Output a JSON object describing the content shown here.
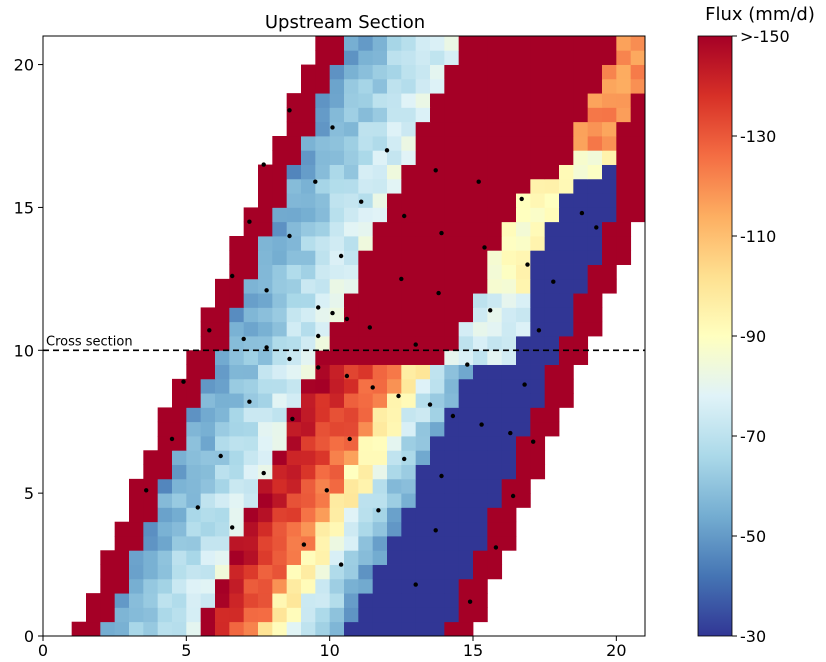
{
  "chart_data": {
    "type": "heatmap",
    "title": "Upstream Section",
    "xlabel": "",
    "ylabel": "",
    "xlim": [
      0,
      21
    ],
    "ylim": [
      0,
      21
    ],
    "x_ticks": [
      0,
      5,
      10,
      15,
      20
    ],
    "y_ticks": [
      0,
      5,
      10,
      15,
      20
    ],
    "colorbar": {
      "label": "Flux (mm/d)",
      "range": [
        -30,
        -150
      ],
      "ticks": [
        "-30",
        "-50",
        "-70",
        "-90",
        "-110",
        "-130",
        ">-150"
      ],
      "colormap": "RdYlBu",
      "colors": [
        "#313695",
        "#4575b4",
        "#74add1",
        "#abd9e9",
        "#e0f3f8",
        "#ffffbf",
        "#fee090",
        "#fdae61",
        "#f46d43",
        "#d73027",
        "#a50026"
      ]
    },
    "annotation": {
      "text": "Cross section",
      "y": 10
    },
    "band_description": "Diagonal band of cells: from the left edge the band shows a red boundary column, then a blue gradient (-50 to -80), a red core (>-150), orange/yellow cells (-100 to -130), a light-blue transition and a dark-blue region (-30) ending in a red boundary column on the right. Left boundary runs from about x=1 at y=0 to x=9.5 at y=21; right boundary from about x=15 at y=0 to x=21 at y=15.",
    "points": [
      [
        14.9,
        1.2
      ],
      [
        13,
        1.8
      ],
      [
        10.4,
        2.5
      ],
      [
        15.8,
        3.1
      ],
      [
        9.1,
        3.2
      ],
      [
        13.7,
        3.7
      ],
      [
        6.6,
        3.8
      ],
      [
        11.7,
        4.4
      ],
      [
        5.4,
        4.5
      ],
      [
        16.4,
        4.9
      ],
      [
        3.6,
        5.1
      ],
      [
        9.9,
        5.1
      ],
      [
        13.9,
        5.6
      ],
      [
        7.7,
        5.7
      ],
      [
        12.6,
        6.2
      ],
      [
        6.2,
        6.3
      ],
      [
        10.7,
        6.9
      ],
      [
        4.5,
        6.9
      ],
      [
        17.1,
        6.8
      ],
      [
        16.3,
        7.1
      ],
      [
        8.7,
        7.6
      ],
      [
        14.3,
        7.7
      ],
      [
        15.3,
        7.4
      ],
      [
        13.5,
        8.1
      ],
      [
        7.2,
        8.2
      ],
      [
        12.4,
        8.4
      ],
      [
        11.5,
        8.7
      ],
      [
        16.8,
        8.8
      ],
      [
        4.9,
        8.9
      ],
      [
        10.6,
        9.1
      ],
      [
        14.8,
        9.5
      ],
      [
        9.6,
        9.4
      ],
      [
        7.8,
        10.1
      ],
      [
        8.6,
        9.7
      ],
      [
        13,
        10.2
      ],
      [
        7,
        10.4
      ],
      [
        9.6,
        10.5
      ],
      [
        11.4,
        10.8
      ],
      [
        5.8,
        10.7
      ],
      [
        17.3,
        10.7
      ],
      [
        10.6,
        11.1
      ],
      [
        10.1,
        11.3
      ],
      [
        9.6,
        11.5
      ],
      [
        15.6,
        11.4
      ],
      [
        7.8,
        12.1
      ],
      [
        13.8,
        12
      ],
      [
        12.5,
        12.5
      ],
      [
        6.6,
        12.6
      ],
      [
        17.8,
        12.4
      ],
      [
        16.9,
        13
      ],
      [
        10.4,
        13.3
      ],
      [
        15.4,
        13.6
      ],
      [
        8.6,
        14
      ],
      [
        13.9,
        14.1
      ],
      [
        19.3,
        14.3
      ],
      [
        7.2,
        14.5
      ],
      [
        12.6,
        14.7
      ],
      [
        18.8,
        14.8
      ],
      [
        11.1,
        15.2
      ],
      [
        16.7,
        15.3
      ],
      [
        9.5,
        15.9
      ],
      [
        15.2,
        15.9
      ],
      [
        7.7,
        16.5
      ],
      [
        13.7,
        16.3
      ],
      [
        12,
        17
      ],
      [
        10.1,
        17.8
      ],
      [
        8.6,
        18.4
      ]
    ]
  }
}
